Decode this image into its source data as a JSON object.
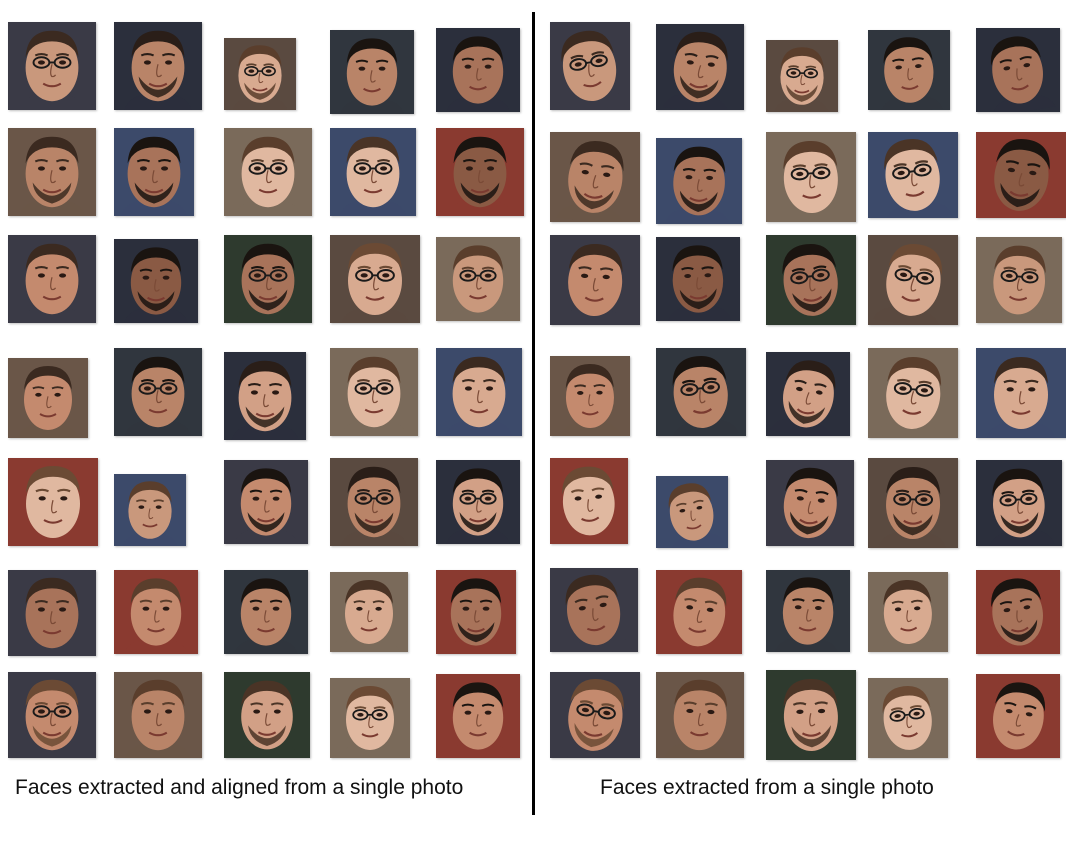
{
  "captions": {
    "left": "Faces extracted and aligned from a single photo",
    "right": "Faces extracted from a single photo"
  },
  "palette": {
    "skin": [
      "#c9987c",
      "#b98468",
      "#d8aa90",
      "#a8735a",
      "#e0b8a0",
      "#8a5a44",
      "#c48a6e",
      "#d2a086"
    ],
    "hair": [
      "#2a1e18",
      "#3b2a20",
      "#1a1410",
      "#5a3e2c",
      "#4a3426",
      "#6b4a34"
    ],
    "bg": [
      "#3a3a46",
      "#2b2f3c",
      "#4a3b36",
      "#6a5648",
      "#30363e",
      "#5a4a40",
      "#7a6a5a",
      "#2e3a2e",
      "#8a3a30",
      "#3c4a6a"
    ]
  },
  "faces": {
    "left": [
      {
        "skin": 0,
        "hair": 1,
        "bg": 0,
        "glasses": true,
        "beard": false
      },
      {
        "skin": 1,
        "hair": 0,
        "bg": 1,
        "glasses": false,
        "beard": true
      },
      {
        "skin": 2,
        "hair": 3,
        "bg": 5,
        "glasses": true,
        "beard": true
      },
      {
        "skin": 1,
        "hair": 2,
        "bg": 4,
        "glasses": false,
        "beard": false
      },
      {
        "skin": 3,
        "hair": 2,
        "bg": 1,
        "glasses": false,
        "beard": false
      },
      {
        "skin": 1,
        "hair": 1,
        "bg": 3,
        "glasses": false,
        "beard": true
      },
      {
        "skin": 3,
        "hair": 2,
        "bg": 9,
        "glasses": false,
        "beard": true
      },
      {
        "skin": 4,
        "hair": 3,
        "bg": 6,
        "glasses": true,
        "beard": false
      },
      {
        "skin": 4,
        "hair": 4,
        "bg": 9,
        "glasses": true,
        "beard": false
      },
      {
        "skin": 5,
        "hair": 2,
        "bg": 8,
        "glasses": false,
        "beard": true
      },
      {
        "skin": 6,
        "hair": 1,
        "bg": 0,
        "glasses": false,
        "beard": false
      },
      {
        "skin": 5,
        "hair": 2,
        "bg": 1,
        "glasses": false,
        "beard": true
      },
      {
        "skin": 3,
        "hair": 2,
        "bg": 7,
        "glasses": true,
        "beard": true
      },
      {
        "skin": 2,
        "hair": 5,
        "bg": 5,
        "glasses": true,
        "beard": false
      },
      {
        "skin": 0,
        "hair": 3,
        "bg": 6,
        "glasses": true,
        "beard": false
      },
      {
        "skin": 6,
        "hair": 1,
        "bg": 3,
        "glasses": false,
        "beard": false
      },
      {
        "skin": 1,
        "hair": 2,
        "bg": 4,
        "glasses": true,
        "beard": false
      },
      {
        "skin": 7,
        "hair": 0,
        "bg": 1,
        "glasses": false,
        "beard": true
      },
      {
        "skin": 4,
        "hair": 3,
        "bg": 6,
        "glasses": true,
        "beard": false
      },
      {
        "skin": 2,
        "hair": 1,
        "bg": 9,
        "glasses": false,
        "beard": false
      },
      {
        "skin": 4,
        "hair": 5,
        "bg": 8,
        "glasses": false,
        "beard": false
      },
      {
        "skin": 0,
        "hair": 3,
        "bg": 9,
        "glasses": false,
        "beard": false
      },
      {
        "skin": 6,
        "hair": 2,
        "bg": 0,
        "glasses": false,
        "beard": true
      },
      {
        "skin": 1,
        "hair": 0,
        "bg": 5,
        "glasses": true,
        "beard": true
      },
      {
        "skin": 7,
        "hair": 2,
        "bg": 1,
        "glasses": true,
        "beard": true
      },
      {
        "skin": 3,
        "hair": 1,
        "bg": 0,
        "glasses": false,
        "beard": false
      },
      {
        "skin": 6,
        "hair": 3,
        "bg": 8,
        "glasses": false,
        "beard": false
      },
      {
        "skin": 1,
        "hair": 2,
        "bg": 4,
        "glasses": false,
        "beard": false
      },
      {
        "skin": 2,
        "hair": 4,
        "bg": 6,
        "glasses": false,
        "beard": false
      },
      {
        "skin": 3,
        "hair": 2,
        "bg": 8,
        "glasses": false,
        "beard": true
      },
      {
        "skin": 6,
        "hair": 5,
        "bg": 0,
        "glasses": true,
        "beard": true
      },
      {
        "skin": 1,
        "hair": 3,
        "bg": 3,
        "glasses": false,
        "beard": false
      },
      {
        "skin": 7,
        "hair": 4,
        "bg": 7,
        "glasses": false,
        "beard": true
      },
      {
        "skin": 4,
        "hair": 5,
        "bg": 6,
        "glasses": true,
        "beard": false
      },
      {
        "skin": 6,
        "hair": 2,
        "bg": 8,
        "glasses": false,
        "beard": false
      }
    ]
  }
}
